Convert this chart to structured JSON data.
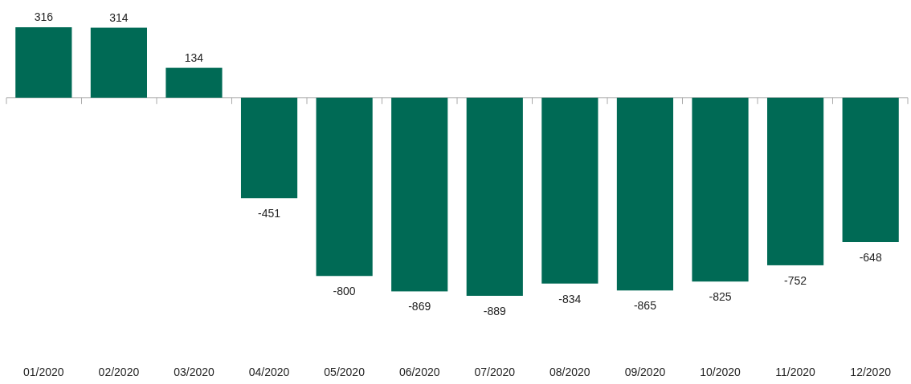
{
  "chart_data": {
    "type": "bar",
    "categories": [
      "01/2020",
      "02/2020",
      "03/2020",
      "04/2020",
      "05/2020",
      "06/2020",
      "07/2020",
      "08/2020",
      "09/2020",
      "10/2020",
      "11/2020",
      "12/2020"
    ],
    "values": [
      316,
      314,
      134,
      -451,
      -800,
      -869,
      -889,
      -834,
      -865,
      -825,
      -752,
      -648
    ],
    "color": "#006a55",
    "data_labels": true
  }
}
